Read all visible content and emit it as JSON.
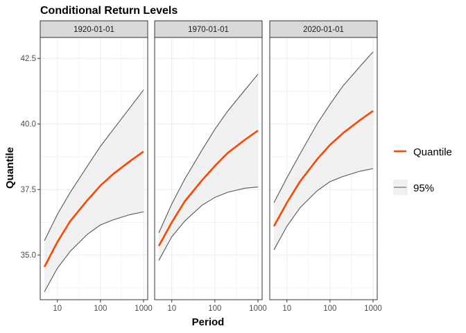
{
  "chart_data": {
    "type": "line",
    "title": "Conditional Return Levels",
    "xlabel": "Period",
    "ylabel": "Quantile",
    "x_scale": "log10",
    "xlim": [
      4,
      1250
    ],
    "ylim": [
      33.3,
      43.3
    ],
    "x_ticks": [
      10,
      100,
      1000
    ],
    "x_tick_labels": [
      "10",
      "100",
      "1000"
    ],
    "y_ticks": [
      35.0,
      37.5,
      40.0,
      42.5
    ],
    "y_tick_labels": [
      "35.0",
      "37.5",
      "40.0",
      "42.5"
    ],
    "grid": true,
    "legend_position": "right",
    "legend": [
      {
        "label": "Quantile",
        "color": "#ff4500",
        "kind": "line"
      },
      {
        "label": "95%",
        "color": "#555555",
        "kind": "band"
      }
    ],
    "colors": {
      "quantile": "#ff4500",
      "bounds": "#555555",
      "band_fill": "#f0f0f0",
      "strip_fill": "#d9d9d9",
      "grid": "#ebebeb"
    },
    "x": [
      5,
      10,
      20,
      50,
      100,
      200,
      500,
      1000
    ],
    "panels": [
      {
        "strip": "1920-01-01",
        "quantile": [
          34.55,
          35.5,
          36.3,
          37.1,
          37.65,
          38.1,
          38.6,
          38.95
        ],
        "lower": [
          33.6,
          34.5,
          35.15,
          35.8,
          36.15,
          36.35,
          36.55,
          36.65
        ],
        "upper": [
          35.55,
          36.55,
          37.4,
          38.4,
          39.15,
          39.8,
          40.65,
          41.3
        ]
      },
      {
        "strip": "1970-01-01",
        "quantile": [
          35.35,
          36.25,
          37.05,
          37.85,
          38.4,
          38.9,
          39.4,
          39.75
        ],
        "lower": [
          34.8,
          35.7,
          36.3,
          36.9,
          37.2,
          37.4,
          37.55,
          37.6
        ],
        "upper": [
          35.85,
          36.95,
          37.9,
          39.0,
          39.8,
          40.5,
          41.3,
          41.9
        ]
      },
      {
        "strip": "2020-01-01",
        "quantile": [
          36.1,
          37.0,
          37.8,
          38.65,
          39.2,
          39.65,
          40.15,
          40.5
        ],
        "lower": [
          35.2,
          36.1,
          36.8,
          37.45,
          37.8,
          38.0,
          38.2,
          38.3
        ],
        "upper": [
          37.0,
          37.95,
          38.85,
          40.0,
          40.75,
          41.45,
          42.2,
          42.75
        ]
      }
    ]
  }
}
